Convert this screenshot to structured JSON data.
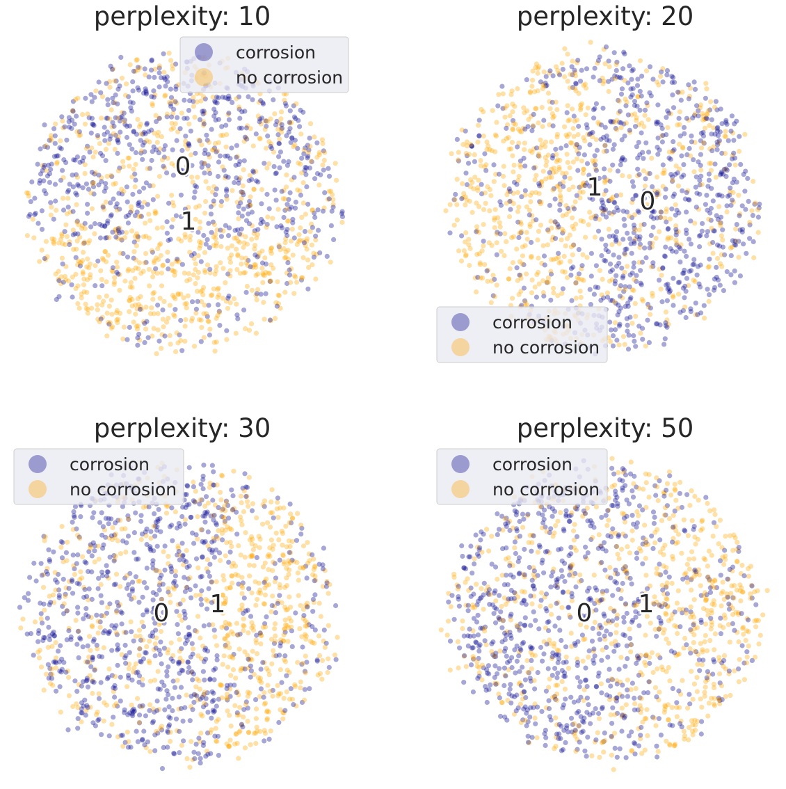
{
  "figure": {
    "background": "#ffffff"
  },
  "colors": {
    "corrosion": "#00008b",
    "no corrosion": "#ffa500"
  },
  "chart_data": [
    {
      "type": "scatter",
      "title": "perplexity: 10",
      "legend": {
        "placement": "top-right",
        "entries": [
          "corrosion",
          "no corrosion"
        ]
      },
      "grid": false,
      "axes_visible": false,
      "series": [
        {
          "name": "corrosion",
          "color": "#00008b",
          "opacity": 0.35
        },
        {
          "name": "no corrosion",
          "color": "#ffa500",
          "opacity": 0.35
        }
      ],
      "cluster_labels": [
        {
          "text": "0",
          "x": 0.51,
          "y": 0.64
        },
        {
          "text": "1",
          "x": 0.52,
          "y": 0.46
        }
      ]
    },
    {
      "type": "scatter",
      "title": "perplexity: 20",
      "legend": {
        "placement": "lower-left",
        "entries": [
          "corrosion",
          "no corrosion"
        ]
      },
      "grid": false,
      "axes_visible": false,
      "series": [
        {
          "name": "corrosion",
          "color": "#00008b",
          "opacity": 0.35
        },
        {
          "name": "no corrosion",
          "color": "#ffa500",
          "opacity": 0.35
        }
      ],
      "cluster_labels": [
        {
          "text": "1",
          "x": 0.47,
          "y": 0.55
        },
        {
          "text": "0",
          "x": 0.63,
          "y": 0.53
        }
      ]
    },
    {
      "type": "scatter",
      "title": "perplexity: 30",
      "legend": {
        "placement": "upper-left",
        "entries": [
          "corrosion",
          "no corrosion"
        ]
      },
      "grid": false,
      "axes_visible": false,
      "series": [
        {
          "name": "corrosion",
          "color": "#00008b",
          "opacity": 0.35
        },
        {
          "name": "no corrosion",
          "color": "#ffa500",
          "opacity": 0.35
        }
      ],
      "cluster_labels": [
        {
          "text": "0",
          "x": 0.44,
          "y": 0.52
        },
        {
          "text": "1",
          "x": 0.6,
          "y": 0.55
        }
      ]
    },
    {
      "type": "scatter",
      "title": "perplexity: 50",
      "legend": {
        "placement": "upper-left",
        "entries": [
          "corrosion",
          "no corrosion"
        ]
      },
      "grid": false,
      "axes_visible": false,
      "series": [
        {
          "name": "corrosion",
          "color": "#00008b",
          "opacity": 0.35
        },
        {
          "name": "no corrosion",
          "color": "#ffa500",
          "opacity": 0.35
        }
      ],
      "cluster_labels": [
        {
          "text": "0",
          "x": 0.44,
          "y": 0.52
        },
        {
          "text": "1",
          "x": 0.63,
          "y": 0.55
        }
      ]
    }
  ]
}
